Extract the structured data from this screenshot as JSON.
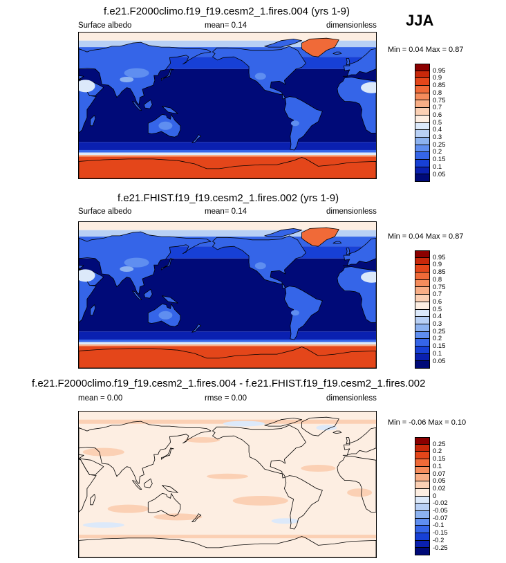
{
  "season": "JJA",
  "panels": [
    {
      "title": "f.e21.F2000climo.f19_f19.cesm2_1.fires.004 (yrs 1-9)",
      "left": "Surface albedo",
      "mid": "mean=   0.14",
      "right": "dimensionless",
      "minmax": "Min =   0.04 Max =   0.87",
      "scheme": "abs"
    },
    {
      "title": "f.e21.FHIST.f19_f19.cesm2_1.fires.002 (yrs 1-9)",
      "left": "Surface albedo",
      "mid": "mean=   0.14",
      "right": "dimensionless",
      "minmax": "Min =   0.04 Max =   0.87",
      "scheme": "abs"
    },
    {
      "title": "f.e21.F2000climo.f19_f19.cesm2_1.fires.004 - f.e21.FHIST.f19_f19.cesm2_1.fires.002",
      "left": "mean =   0.00",
      "mid": "rmse =   0.00",
      "right": "dimensionless",
      "minmax": "Min =  -0.06 Max =   0.10",
      "scheme": "diff"
    }
  ],
  "colorbars": {
    "abs": {
      "labels": [
        "0.95",
        "0.9",
        "0.85",
        "0.8",
        "0.75",
        "0.7",
        "0.6",
        "0.5",
        "0.4",
        "0.3",
        "0.25",
        "0.2",
        "0.15",
        "0.1",
        "0.05"
      ],
      "colors": [
        "#8b0000",
        "#c8280a",
        "#e4461a",
        "#f06a38",
        "#f58c5c",
        "#f8ae86",
        "#fbd0b4",
        "#fdeee2",
        "#dce9fa",
        "#b8d0f5",
        "#8cb2f0",
        "#5f8ef0",
        "#3565e8",
        "#1740d6",
        "#0a20b0",
        "#000a78"
      ]
    },
    "diff": {
      "labels": [
        "0.25",
        "0.2",
        "0.15",
        "0.1",
        "0.07",
        "0.05",
        "0.02",
        "0",
        "-0.02",
        "-0.05",
        "-0.07",
        "-0.1",
        "-0.15",
        "-0.2",
        "-0.25"
      ],
      "colors": [
        "#8b0000",
        "#c8280a",
        "#e4461a",
        "#f06a38",
        "#f58c5c",
        "#f8ae86",
        "#fbd0b4",
        "#fdeee2",
        "#dce9fa",
        "#b8d0f5",
        "#8cb2f0",
        "#5f8ef0",
        "#3565e8",
        "#1740d6",
        "#0a20b0",
        "#000a78"
      ]
    }
  }
}
